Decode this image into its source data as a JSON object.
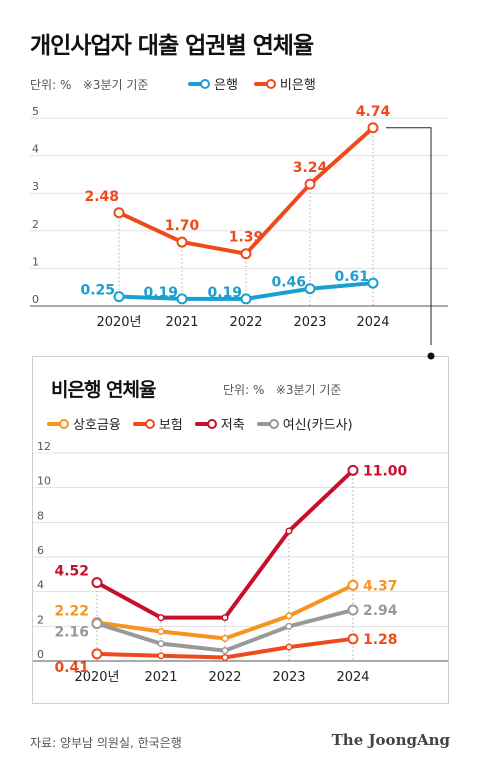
{
  "title": "개인사업자 대출 업권별 연체율",
  "unit": "단위: %",
  "note": "※3분기 기준",
  "source": "자료: 양부남 의원실, 한국은행",
  "brand": "The JoongAng",
  "chart_data": [
    {
      "type": "line",
      "x": [
        "2020년",
        "2021",
        "2022",
        "2023",
        "2024"
      ],
      "ylim": [
        0,
        5
      ],
      "yticks": [
        "0",
        "1",
        "2",
        "3",
        "4",
        "5"
      ],
      "grid": true,
      "legend": "top",
      "series": [
        {
          "name": "은행",
          "color": "#1a9fd0",
          "values": [
            0.25,
            0.19,
            0.19,
            0.46,
            0.61
          ],
          "labels": [
            "0.25",
            "0.19",
            "0.19",
            "0.46",
            "0.61"
          ]
        },
        {
          "name": "비은행",
          "color": "#f04a1c",
          "values": [
            2.48,
            1.7,
            1.39,
            3.24,
            4.74
          ],
          "labels": [
            "2.48",
            "1.70",
            "1.39",
            "3.24",
            "4.74"
          ]
        }
      ]
    },
    {
      "type": "line",
      "title": "비은행 연체율",
      "x": [
        "2020년",
        "2021",
        "2022",
        "2023",
        "2024"
      ],
      "ylim": [
        0,
        12
      ],
      "yticks": [
        "0",
        "2",
        "4",
        "6",
        "8",
        "10",
        "12"
      ],
      "grid": true,
      "legend": "top",
      "series": [
        {
          "name": "상호금융",
          "color": "#f7941d",
          "values": [
            2.22,
            1.7,
            1.3,
            2.6,
            4.37
          ],
          "labels": [
            "2.22",
            "",
            "",
            "",
            "4.37"
          ]
        },
        {
          "name": "보험",
          "color": "#f04a1c",
          "values": [
            0.41,
            0.3,
            0.2,
            0.8,
            1.28
          ],
          "labels": [
            "0.41",
            "",
            "",
            "",
            "1.28"
          ]
        },
        {
          "name": "저축",
          "color": "#c8102e",
          "values": [
            4.52,
            2.5,
            2.5,
            7.5,
            11.0
          ],
          "labels": [
            "4.52",
            "",
            "",
            "",
            "11.00"
          ]
        },
        {
          "name": "여신(카드사)",
          "color": "#999999",
          "values": [
            2.16,
            1.0,
            0.6,
            2.0,
            2.94
          ],
          "labels": [
            "2.16",
            "",
            "",
            "",
            "2.94"
          ]
        }
      ]
    }
  ]
}
